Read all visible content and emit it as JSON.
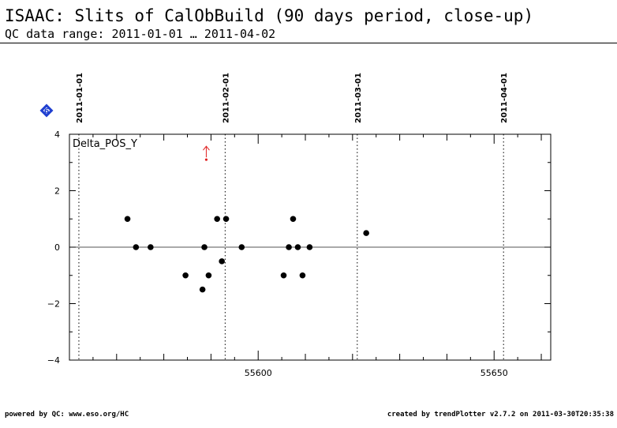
{
  "header": {
    "title": "ISAAC: Slits of CalObBuild (90 days period, close-up)",
    "subtitle": "QC data range: 2011-01-01 … 2011-04-02"
  },
  "footer": {
    "left": "powered by QC: www.eso.org/HC",
    "right": "created by trendPlotter v2.7.2 on 2011-03-30T20:35:38"
  },
  "badge": {
    "label": "6",
    "color": "#1f3fd0"
  },
  "colors": {
    "points": "#000000",
    "outlier": "#e02020",
    "zero_line": "#555555"
  },
  "chart_data": {
    "type": "scatter",
    "panel_label": "Delta_POS_Y",
    "xlim": [
      55560,
      55662
    ],
    "ylim": [
      -4,
      4
    ],
    "x_ticks": [
      55600,
      55650
    ],
    "y_ticks": [
      -4,
      -2,
      0,
      2,
      4
    ],
    "y_tick_labels": [
      "−4",
      "−2",
      "0",
      "2",
      "4"
    ],
    "date_markers": [
      {
        "label": "2011-01-01",
        "x": 55562
      },
      {
        "label": "2011-02-01",
        "x": 55593
      },
      {
        "label": "2011-03-01",
        "x": 55621
      },
      {
        "label": "2011-04-01",
        "x": 55652
      }
    ],
    "points": [
      {
        "x": 55572.3,
        "y": 1.0
      },
      {
        "x": 55574.1,
        "y": 0.0
      },
      {
        "x": 55577.2,
        "y": 0.0
      },
      {
        "x": 55584.6,
        "y": -1.0
      },
      {
        "x": 55588.2,
        "y": -1.5
      },
      {
        "x": 55588.6,
        "y": 0.0
      },
      {
        "x": 55589.5,
        "y": -1.0
      },
      {
        "x": 55591.3,
        "y": 1.0
      },
      {
        "x": 55592.3,
        "y": -0.5
      },
      {
        "x": 55593.2,
        "y": 1.0
      },
      {
        "x": 55596.5,
        "y": 0.0
      },
      {
        "x": 55605.4,
        "y": -1.0
      },
      {
        "x": 55606.5,
        "y": 0.0
      },
      {
        "x": 55607.4,
        "y": 1.0
      },
      {
        "x": 55608.4,
        "y": 0.0
      },
      {
        "x": 55609.4,
        "y": -1.0
      },
      {
        "x": 55610.9,
        "y": 0.0
      },
      {
        "x": 55622.9,
        "y": 0.5
      }
    ],
    "outliers": [
      {
        "x": 55589.0,
        "y": 3.1,
        "direction": "up"
      }
    ]
  }
}
